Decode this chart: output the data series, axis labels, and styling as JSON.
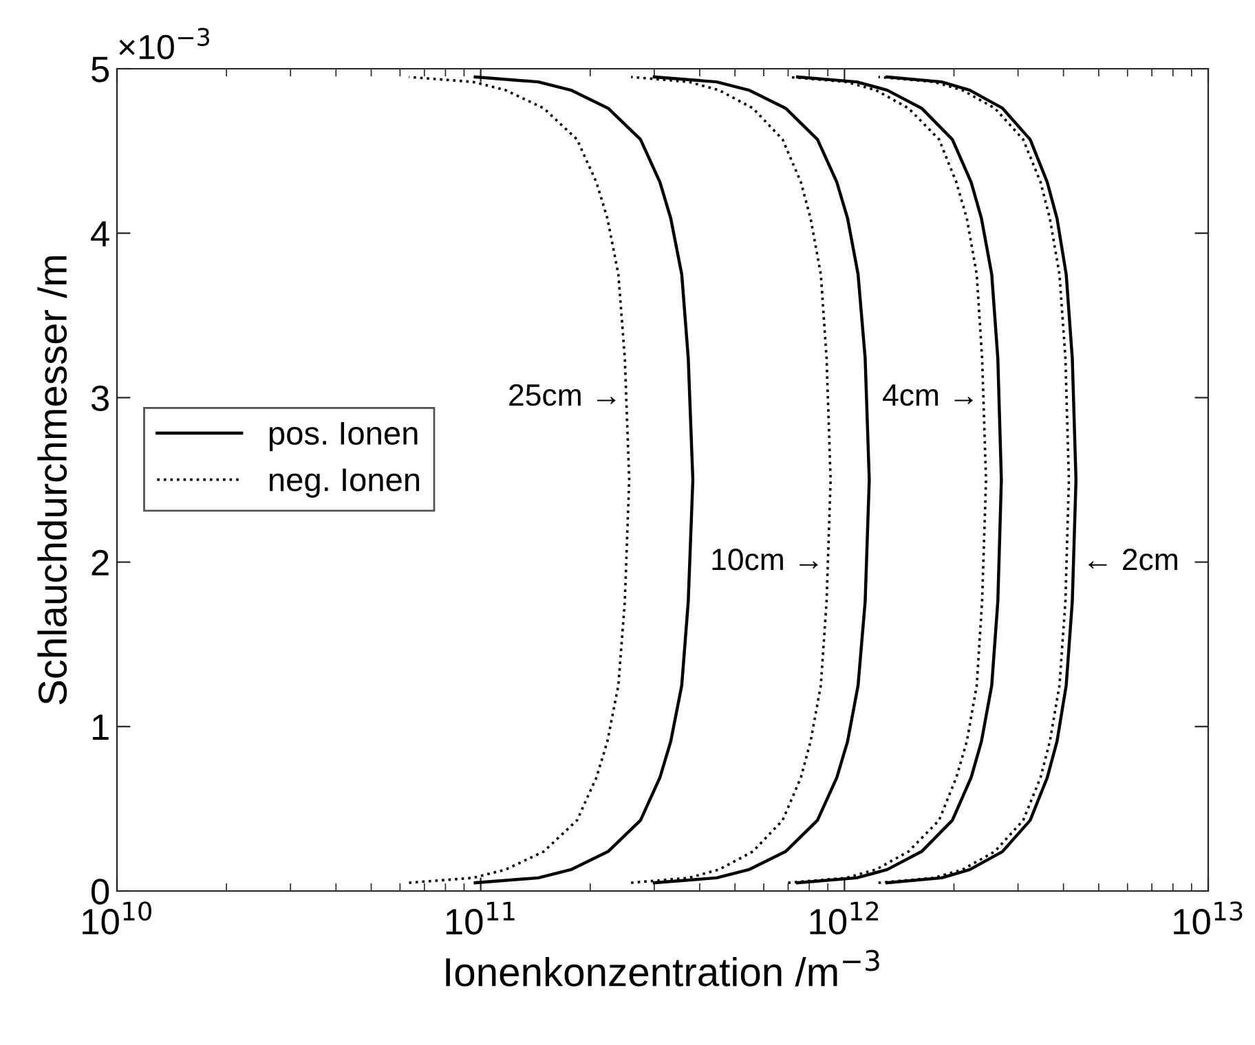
{
  "chart_data": {
    "type": "line",
    "log": "x",
    "grid": false,
    "legend": "left",
    "marker": "none",
    "xlabel": "Ionenkonzentration /m$^{−3}$",
    "ylabel": "Schlauchdurchmesser /m",
    "xlim": [
      10000000000.0,
      10000000000000.0
    ],
    "xticks": [
      {
        "value": 10000000000.0,
        "label": "10$^{10}$"
      },
      {
        "value": 100000000000.0,
        "label": "10$^{11}$"
      },
      {
        "value": 1000000000000.0,
        "label": "10$^{12}$"
      },
      {
        "value": 10000000000000.0,
        "label": "10$^{13}$"
      }
    ],
    "ylim": [
      0,
      5
    ],
    "yticks": [
      0,
      1,
      2,
      3,
      4,
      5
    ],
    "annotations": [
      "×10$^{−3}$",
      {
        "text": "25cm →",
        "x": 250000000000.0,
        "y": 3
      },
      {
        "text": "10cm →",
        "x": 900000000000.0,
        "y": 2
      },
      {
        "text": "4cm →",
        "x": 2400000000000.0,
        "y": 3
      },
      {
        "text": "← 2cm",
        "x": 4400000000000.0,
        "y": 2
      }
    ],
    "series": [
      {
        "name": "pos. Ionen",
        "color": "#000000",
        "line_style": "solid",
        "x": [
          96600000000.0,
          144000000000.0,
          177000000000.0,
          224000000000.0,
          275000000000.0,
          311000000000.0,
          333000000000.0,
          357000000000.0,
          372000000000.0,
          383000000000.0,
          372000000000.0,
          357000000000.0,
          333000000000.0,
          311000000000.0,
          275000000000.0,
          224000000000.0,
          177000000000.0,
          144000000000.0,
          96600000000.0
        ],
        "values": [
          0.05,
          0.08,
          0.13,
          0.24,
          0.43,
          0.69,
          0.91,
          1.25,
          1.76,
          2.5,
          3.24,
          3.75,
          4.09,
          4.31,
          4.57,
          4.76,
          4.87,
          4.92,
          4.95
        ]
      },
      {
        "name": "neg. Ionen",
        "color": "#000000",
        "line_style": "dotted",
        "x": [
          63500000000.0,
          95300000000.0,
          117000000000.0,
          149000000000.0,
          184000000000.0,
          208000000000.0,
          223000000000.0,
          239000000000.0,
          249000000000.0,
          256000000000.0,
          249000000000.0,
          239000000000.0,
          223000000000.0,
          208000000000.0,
          184000000000.0,
          149000000000.0,
          117000000000.0,
          95300000000.0,
          63500000000.0
        ],
        "values": [
          0.05,
          0.08,
          0.13,
          0.24,
          0.43,
          0.69,
          0.91,
          1.25,
          1.76,
          2.5,
          3.24,
          3.75,
          4.09,
          4.31,
          4.57,
          4.76,
          4.87,
          4.92,
          4.95
        ]
      },
      {
        "color": "#000000",
        "line_style": "solid",
        "x": [
          300000000000.0,
          445000000000.0,
          546000000000.0,
          689000000000.0,
          843000000000.0,
          953000000000.0,
          1020000000000.0,
          1090000000000.0,
          1140000000000.0,
          1170000000000.0,
          1140000000000.0,
          1090000000000.0,
          1020000000000.0,
          953000000000.0,
          843000000000.0,
          689000000000.0,
          546000000000.0,
          445000000000.0,
          300000000000.0
        ],
        "values": [
          0.05,
          0.08,
          0.13,
          0.24,
          0.43,
          0.69,
          0.91,
          1.25,
          1.76,
          2.5,
          3.24,
          3.75,
          4.09,
          4.31,
          4.57,
          4.76,
          4.87,
          4.92,
          4.95
        ]
      },
      {
        "color": "#000000",
        "line_style": "dotted",
        "x": [
          259000000000.0,
          373000000000.0,
          452000000000.0,
          560000000000.0,
          676000000000.0,
          759000000000.0,
          807000000000.0,
          861000000000.0,
          893000000000.0,
          916000000000.0,
          893000000000.0,
          861000000000.0,
          807000000000.0,
          759000000000.0,
          676000000000.0,
          560000000000.0,
          452000000000.0,
          373000000000.0,
          259000000000.0
        ],
        "values": [
          0.05,
          0.08,
          0.13,
          0.24,
          0.43,
          0.69,
          0.91,
          1.25,
          1.76,
          2.5,
          3.24,
          3.75,
          4.09,
          4.31,
          4.57,
          4.76,
          4.87,
          4.92,
          4.95
        ]
      },
      {
        "color": "#000000",
        "line_style": "solid",
        "x": [
          743000000000.0,
          1080000000000.0,
          1310000000000.0,
          1630000000000.0,
          1980000000000.0,
          2230000000000.0,
          2380000000000.0,
          2540000000000.0,
          2640000000000.0,
          2700000000000.0,
          2640000000000.0,
          2540000000000.0,
          2380000000000.0,
          2230000000000.0,
          1980000000000.0,
          1630000000000.0,
          1310000000000.0,
          1080000000000.0,
          743000000000.0
        ],
        "values": [
          0.05,
          0.08,
          0.13,
          0.24,
          0.43,
          0.69,
          0.91,
          1.25,
          1.76,
          2.5,
          3.24,
          3.75,
          4.09,
          4.31,
          4.57,
          4.76,
          4.87,
          4.92,
          4.95
        ]
      },
      {
        "color": "#000000",
        "line_style": "dotted",
        "x": [
          700000000000.0,
          1010000000000.0,
          1220000000000.0,
          1500000000000.0,
          1820000000000.0,
          2030000000000.0,
          2170000000000.0,
          2310000000000.0,
          2390000000000.0,
          2450000000000.0,
          2390000000000.0,
          2310000000000.0,
          2170000000000.0,
          2030000000000.0,
          1820000000000.0,
          1500000000000.0,
          1220000000000.0,
          1010000000000.0,
          700000000000.0
        ],
        "values": [
          0.05,
          0.08,
          0.13,
          0.24,
          0.43,
          0.69,
          0.91,
          1.25,
          1.76,
          2.5,
          3.24,
          3.75,
          4.09,
          4.31,
          4.57,
          4.76,
          4.87,
          4.92,
          4.95
        ]
      },
      {
        "color": "#000000",
        "line_style": "solid",
        "x": [
          1310000000000.0,
          1850000000000.0,
          2210000000000.0,
          2720000000000.0,
          3240000000000.0,
          3610000000000.0,
          3840000000000.0,
          4070000000000.0,
          4230000000000.0,
          4330000000000.0,
          4230000000000.0,
          4070000000000.0,
          3840000000000.0,
          3610000000000.0,
          3240000000000.0,
          2720000000000.0,
          2210000000000.0,
          1850000000000.0,
          1310000000000.0
        ],
        "values": [
          0.05,
          0.08,
          0.13,
          0.24,
          0.43,
          0.69,
          0.91,
          1.25,
          1.76,
          2.5,
          3.24,
          3.75,
          4.09,
          4.31,
          4.57,
          4.76,
          4.87,
          4.92,
          4.95
        ]
      },
      {
        "color": "#000000",
        "line_style": "dotted",
        "x": [
          1240000000000.0,
          1760000000000.0,
          2110000000000.0,
          2590000000000.0,
          3100000000000.0,
          3460000000000.0,
          3670000000000.0,
          3900000000000.0,
          4050000000000.0,
          4140000000000.0,
          4050000000000.0,
          3900000000000.0,
          3670000000000.0,
          3460000000000.0,
          3100000000000.0,
          2590000000000.0,
          2110000000000.0,
          1760000000000.0,
          1240000000000.0
        ],
        "values": [
          0.05,
          0.08,
          0.13,
          0.24,
          0.43,
          0.69,
          0.91,
          1.25,
          1.76,
          2.5,
          3.24,
          3.75,
          4.09,
          4.31,
          4.57,
          4.76,
          4.87,
          4.92,
          4.95
        ]
      }
    ]
  }
}
